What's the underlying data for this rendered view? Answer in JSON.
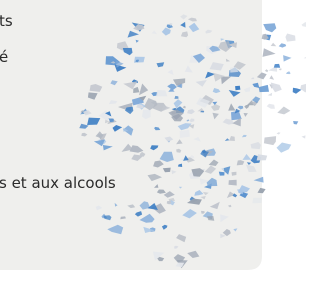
{
  "texts": {
    "line1": "ts",
    "line2": "é",
    "line3": "s et aux alcools"
  }
}
